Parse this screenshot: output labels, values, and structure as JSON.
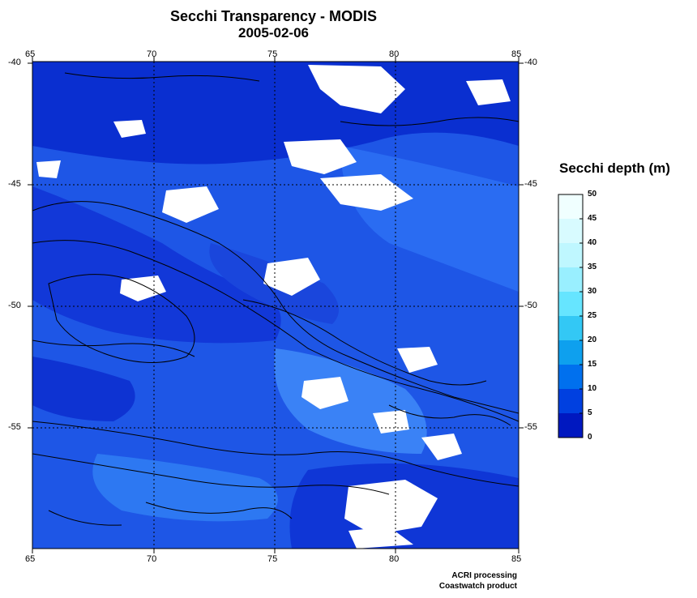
{
  "header": {
    "title": "Secchi Transparency - MODIS",
    "date": "2005-02-06"
  },
  "map": {
    "lon_ticks": [
      "65",
      "70",
      "75",
      "80",
      "85"
    ],
    "lat_ticks": [
      "-40",
      "-45",
      "-50",
      "-55"
    ]
  },
  "legend": {
    "title": "Secchi depth (m)",
    "labels": [
      "50",
      "45",
      "40",
      "35",
      "30",
      "25",
      "20",
      "15",
      "10",
      "5",
      "0"
    ],
    "colors": [
      "#f0ffff",
      "#d8fbff",
      "#bff7ff",
      "#99efff",
      "#66e5ff",
      "#33c8f5",
      "#0ea0ee",
      "#0070ee",
      "#0040e0",
      "#0018c0",
      "#000099"
    ]
  },
  "footer": {
    "credit1": "ACRI processing",
    "credit2": "Coastwatch product"
  }
}
